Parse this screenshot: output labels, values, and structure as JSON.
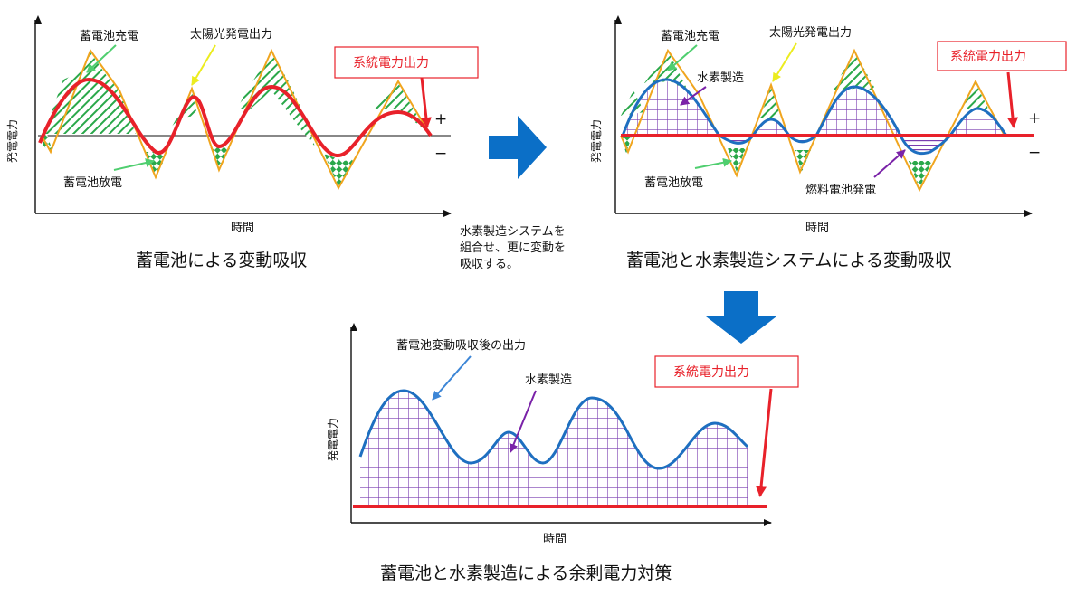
{
  "panel1": {
    "y_axis": "発電電力",
    "x_axis": "時間",
    "battery_charge": "蓄電池充電",
    "solar_output": "太陽光発電出力",
    "grid_output": "系統電力出力",
    "battery_discharge": "蓄電池放電",
    "plus": "+",
    "minus": "−",
    "caption": "蓄電池による変動吸収"
  },
  "middle_note": [
    "水素製造システムを",
    "組合せ、更に変動を",
    "吸収する。"
  ],
  "panel2": {
    "y_axis": "発電電力",
    "x_axis": "時間",
    "battery_charge": "蓄電池充電",
    "solar_output": "太陽光発電出力",
    "grid_output": "系統電力出力",
    "hydrogen": "水素製造",
    "battery_discharge": "蓄電池放電",
    "fuel_cell": "燃料電池発電",
    "plus": "+",
    "minus": "−",
    "caption": "蓄電池と水素製造システムによる変動吸収"
  },
  "panel3": {
    "y_axis": "発電電力",
    "x_axis": "時間",
    "after_battery": "蓄電池変動吸収後の出力",
    "hydrogen": "水素製造",
    "grid_output": "系統電力出力",
    "caption": "蓄電池と水素製造による余剰電力対策"
  },
  "colors": {
    "solar": "#f0a51e",
    "battery_hatch": "#2aa84a",
    "grid_red": "#e8212a",
    "smooth_blue": "#1e6fc0",
    "hydrogen_grid": "#7a3db0",
    "arrow_blue": "#0b6fc7"
  }
}
